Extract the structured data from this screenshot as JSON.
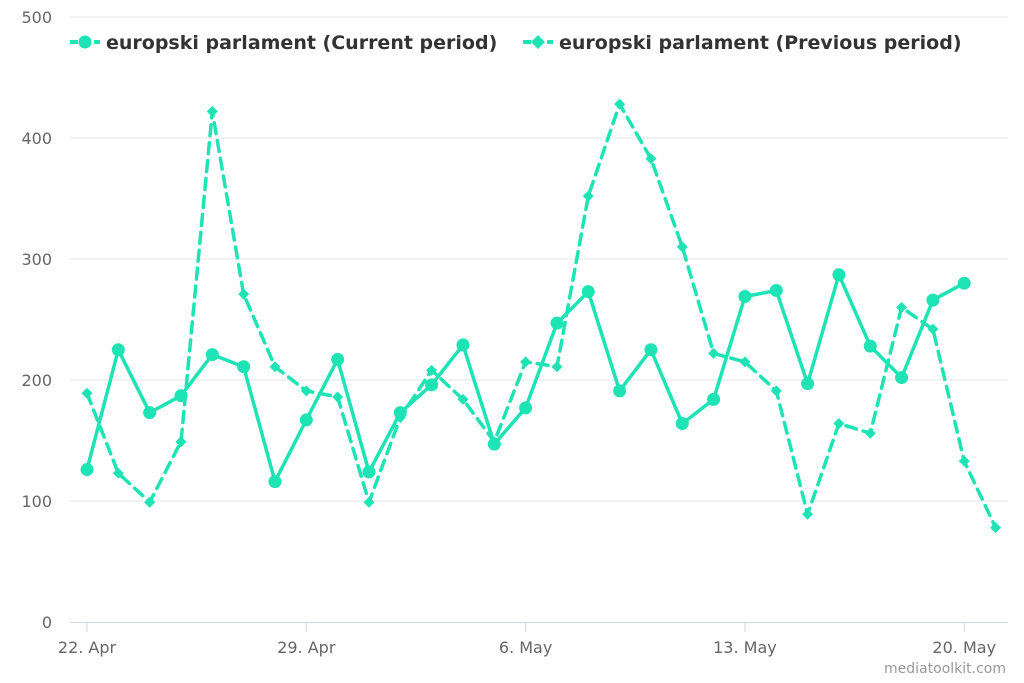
{
  "colors": {
    "series": "#1de3b5",
    "grid": "#e6e6e6",
    "axis": "#ccd6eb",
    "tick_text": "#666666",
    "legend_text": "#333333"
  },
  "credits": "mediatoolkit.com",
  "chart_data": {
    "type": "line",
    "title": "",
    "xlabel": "",
    "ylabel": "",
    "ylim": [
      0,
      500
    ],
    "yticks": [
      0,
      100,
      200,
      300,
      400,
      500
    ],
    "x_start": "22. Apr",
    "x_tick_labels": [
      {
        "index": 0,
        "label": "22. Apr"
      },
      {
        "index": 7,
        "label": "29. Apr"
      },
      {
        "index": 14,
        "label": "6. May"
      },
      {
        "index": 21,
        "label": "13. May"
      },
      {
        "index": 28,
        "label": "20. May"
      }
    ],
    "grid": true,
    "legend": "top-left",
    "series": [
      {
        "name": "europski parlament (Current period)",
        "line_style": "solid",
        "marker": "circle",
        "values": [
          126,
          225,
          173,
          187,
          221,
          211,
          116,
          167,
          217,
          124,
          173,
          196,
          229,
          147,
          177,
          247,
          273,
          191,
          225,
          164,
          184,
          269,
          274,
          197,
          287,
          228,
          202,
          266,
          280
        ]
      },
      {
        "name": "europski parlament (Previous period)",
        "line_style": "dashed",
        "marker": "diamond",
        "values": [
          189,
          123,
          99,
          149,
          422,
          271,
          211,
          191,
          186,
          99,
          169,
          208,
          184,
          149,
          215,
          211,
          352,
          428,
          383,
          310,
          222,
          215,
          191,
          89,
          164,
          156,
          260,
          242,
          133,
          78
        ]
      }
    ]
  }
}
